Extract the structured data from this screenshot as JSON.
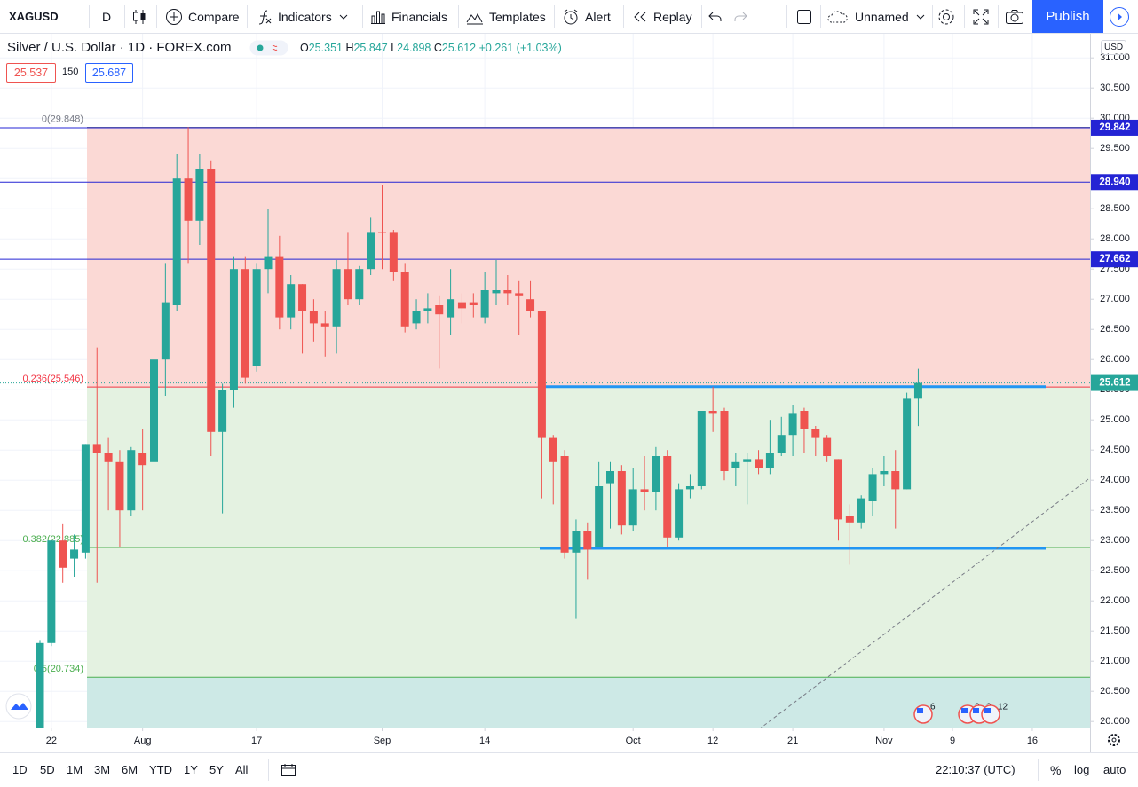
{
  "toolbar": {
    "symbol": "XAGUSD",
    "interval": "D",
    "compare": "Compare",
    "indicators": "Indicators",
    "financials": "Financials",
    "templates": "Templates",
    "alert": "Alert",
    "replay": "Replay",
    "layout_name": "Unnamed",
    "publish": "Publish"
  },
  "legend": {
    "title": "Silver / U.S. Dollar · 1D · FOREX.com",
    "open_prefix": "O",
    "high_prefix": "H",
    "low_prefix": "L",
    "close_prefix": "C",
    "change": "+0.261 (+1.03%)",
    "bid": "25.537",
    "spread": "150",
    "ask": "25.687"
  },
  "currency": "USD",
  "chart_data": {
    "type": "candlestick",
    "categories": [
      null,
      "22",
      null,
      null,
      null,
      null,
      null,
      null,
      null,
      "Aug",
      null,
      null,
      null,
      null,
      null,
      null,
      null,
      null,
      null,
      "17",
      null,
      null,
      null,
      null,
      null,
      null,
      null,
      null,
      null,
      null,
      "Sep",
      null,
      null,
      null,
      null,
      null,
      null,
      null,
      null,
      "14",
      null,
      null,
      null,
      null,
      null,
      null,
      null,
      null,
      null,
      null,
      null,
      null,
      "Oct",
      null,
      null,
      null,
      null,
      null,
      null,
      "12",
      null,
      null,
      null,
      null,
      null,
      null,
      "21",
      null,
      null,
      null,
      null,
      null,
      null,
      null,
      "Nov",
      null,
      null,
      null,
      null,
      null,
      "9",
      null,
      null,
      null,
      null,
      null,
      null,
      "16",
      null,
      null
    ],
    "open": [
      19.6,
      21.3,
      23.0,
      22.7,
      22.8,
      24.6,
      24.45,
      24.3,
      23.5,
      24.45,
      24.3,
      26.0,
      26.9,
      29.0,
      28.3,
      29.15,
      24.8,
      25.5,
      27.5,
      25.9,
      27.5,
      27.7,
      26.7,
      27.25,
      26.8,
      26.6,
      26.55,
      27.5,
      27.0,
      27.5,
      28.12,
      28.1,
      27.45,
      26.6,
      26.8,
      26.9,
      26.7,
      26.95,
      26.95,
      26.7,
      27.1,
      27.15,
      27.1,
      27.0,
      26.8,
      24.7,
      24.4,
      22.8,
      23.15,
      22.9,
      23.95,
      24.15,
      23.25,
      23.85,
      23.8,
      24.4,
      23.05,
      23.85,
      23.9,
      25.15,
      25.15,
      24.2,
      24.3,
      24.35,
      24.2,
      24.45,
      24.75,
      25.15,
      24.85,
      24.7,
      24.35,
      23.4,
      23.3,
      23.65,
      24.1,
      24.15,
      23.85,
      25.351,
      null,
      null,
      null,
      null,
      null,
      null,
      null,
      null,
      null,
      null,
      null,
      null
    ],
    "high": [
      21.35,
      23.0,
      23.27,
      23.1,
      24.6,
      26.2,
      24.7,
      24.5,
      24.55,
      24.85,
      26.05,
      27.6,
      29.4,
      29.85,
      29.4,
      29.3,
      25.6,
      27.7,
      27.7,
      27.6,
      28.5,
      28.05,
      27.4,
      27.25,
      27.0,
      26.8,
      27.65,
      28.1,
      27.55,
      28.35,
      28.9,
      28.15,
      27.6,
      27.0,
      27.1,
      27.05,
      27.5,
      27.1,
      27.1,
      27.45,
      27.65,
      27.4,
      27.3,
      27.3,
      26.8,
      24.75,
      24.5,
      23.35,
      23.3,
      24.3,
      24.3,
      24.25,
      24.2,
      24.4,
      24.55,
      24.5,
      23.95,
      24.1,
      25.15,
      25.55,
      25.2,
      24.45,
      24.45,
      24.5,
      25.0,
      25.05,
      25.25,
      25.2,
      24.9,
      24.75,
      24.35,
      23.6,
      23.75,
      24.2,
      24.4,
      24.5,
      25.45,
      25.847,
      null,
      null,
      null,
      null,
      null,
      null,
      null,
      null,
      null,
      null,
      null,
      null
    ],
    "low": [
      19.5,
      21.25,
      22.3,
      22.4,
      22.7,
      22.3,
      23.5,
      22.9,
      23.4,
      23.5,
      24.2,
      25.4,
      26.8,
      27.6,
      27.9,
      24.4,
      23.45,
      25.2,
      25.6,
      25.8,
      27.1,
      26.5,
      26.5,
      26.1,
      26.3,
      26.05,
      26.1,
      26.9,
      26.9,
      27.4,
      27.5,
      27.3,
      26.45,
      26.5,
      26.6,
      25.85,
      26.4,
      26.6,
      26.7,
      26.6,
      26.9,
      26.9,
      26.4,
      26.7,
      23.7,
      23.6,
      22.7,
      21.7,
      22.35,
      22.9,
      23.2,
      23.1,
      23.15,
      23.5,
      23.5,
      22.9,
      23.0,
      23.7,
      23.85,
      24.8,
      24.0,
      23.9,
      23.6,
      24.1,
      24.1,
      24.4,
      24.4,
      24.45,
      24.4,
      24.3,
      23.0,
      22.6,
      23.2,
      23.4,
      23.9,
      23.2,
      23.85,
      24.898,
      null,
      null,
      null,
      null,
      null,
      null,
      null,
      null,
      null,
      null,
      null,
      null
    ],
    "close": [
      21.3,
      23.0,
      22.55,
      22.85,
      24.6,
      24.45,
      24.3,
      23.5,
      24.5,
      24.25,
      26.0,
      26.95,
      29.0,
      28.3,
      29.15,
      24.8,
      25.5,
      27.5,
      25.7,
      27.5,
      27.7,
      26.7,
      27.25,
      26.8,
      26.6,
      26.55,
      27.5,
      27.0,
      27.5,
      28.1,
      28.1,
      27.45,
      26.55,
      26.8,
      26.85,
      26.75,
      27.0,
      26.85,
      26.9,
      27.15,
      27.15,
      27.1,
      27.05,
      26.8,
      24.7,
      24.3,
      22.8,
      23.15,
      22.85,
      23.9,
      24.15,
      23.25,
      23.85,
      23.8,
      24.4,
      23.05,
      23.85,
      23.9,
      25.15,
      25.1,
      24.15,
      24.3,
      24.35,
      24.2,
      24.45,
      24.75,
      25.1,
      24.85,
      24.7,
      24.4,
      23.35,
      23.3,
      23.7,
      24.1,
      24.15,
      23.85,
      25.35,
      25.612,
      null,
      null,
      null,
      null,
      null,
      null,
      null,
      null,
      null,
      null,
      null,
      null
    ],
    "up_color": "#26a69a",
    "down_color": "#ef5350",
    "ylim": [
      19.9,
      31.4
    ],
    "yticks": [
      {
        "value": 20,
        "label": "20.000"
      },
      {
        "value": 20.5,
        "label": "20.500"
      },
      {
        "value": 21,
        "label": "21.000"
      },
      {
        "value": 21.5,
        "label": "21.500"
      },
      {
        "value": 22,
        "label": "22.000"
      },
      {
        "value": 22.5,
        "label": "22.500"
      },
      {
        "value": 23,
        "label": "23.000"
      },
      {
        "value": 23.5,
        "label": "23.500"
      },
      {
        "value": 24,
        "label": "24.000"
      },
      {
        "value": 24.5,
        "label": "24.500"
      },
      {
        "value": 25,
        "label": "25.000"
      },
      {
        "value": 25.5,
        "label": "25.500"
      },
      {
        "value": 26,
        "label": "26.000"
      },
      {
        "value": 26.5,
        "label": "26.500"
      },
      {
        "value": 27,
        "label": "27.000"
      },
      {
        "value": 27.5,
        "label": "27.500"
      },
      {
        "value": 28,
        "label": "28.000"
      },
      {
        "value": 28.5,
        "label": "28.500"
      },
      {
        "value": 29,
        "label": "29.000"
      },
      {
        "value": 29.5,
        "label": "29.500"
      },
      {
        "value": 30,
        "label": "30.000"
      },
      {
        "value": 30.5,
        "label": "30.500"
      },
      {
        "value": 31,
        "label": "31.000"
      }
    ],
    "grid": true,
    "price_lines": [
      {
        "value": 29.842,
        "label": "29.842"
      },
      {
        "value": 28.94,
        "label": "28.940"
      },
      {
        "value": 27.662,
        "label": "27.662"
      }
    ],
    "price_line_color": "#2424d4",
    "fib_levels": [
      {
        "label": "0(29.848)",
        "value": 29.848,
        "color": "#787b86",
        "fill": "#fbd9d5"
      },
      {
        "label": "0.236(25.546)",
        "value": 25.546,
        "color": "#f23645",
        "fill": "#e4f2e1"
      },
      {
        "label": "0.382(22.885)",
        "value": 22.885,
        "color": "#4caf50",
        "fill": "#e4f2e1"
      },
      {
        "label": "0.5(20.734)",
        "value": 20.734,
        "color": "#4caf50",
        "fill": "#cde9e6"
      }
    ],
    "support_levels": [
      25.55,
      22.87
    ],
    "support_color": "#2196f3"
  },
  "events": [
    "6",
    "2",
    "2",
    "12"
  ],
  "bottom_bar": {
    "ranges": [
      "1D",
      "5D",
      "1M",
      "3M",
      "6M",
      "YTD",
      "1Y",
      "5Y",
      "All"
    ],
    "time": "22:10:37 (UTC)",
    "percent": "%",
    "log": "log",
    "auto": "auto"
  }
}
